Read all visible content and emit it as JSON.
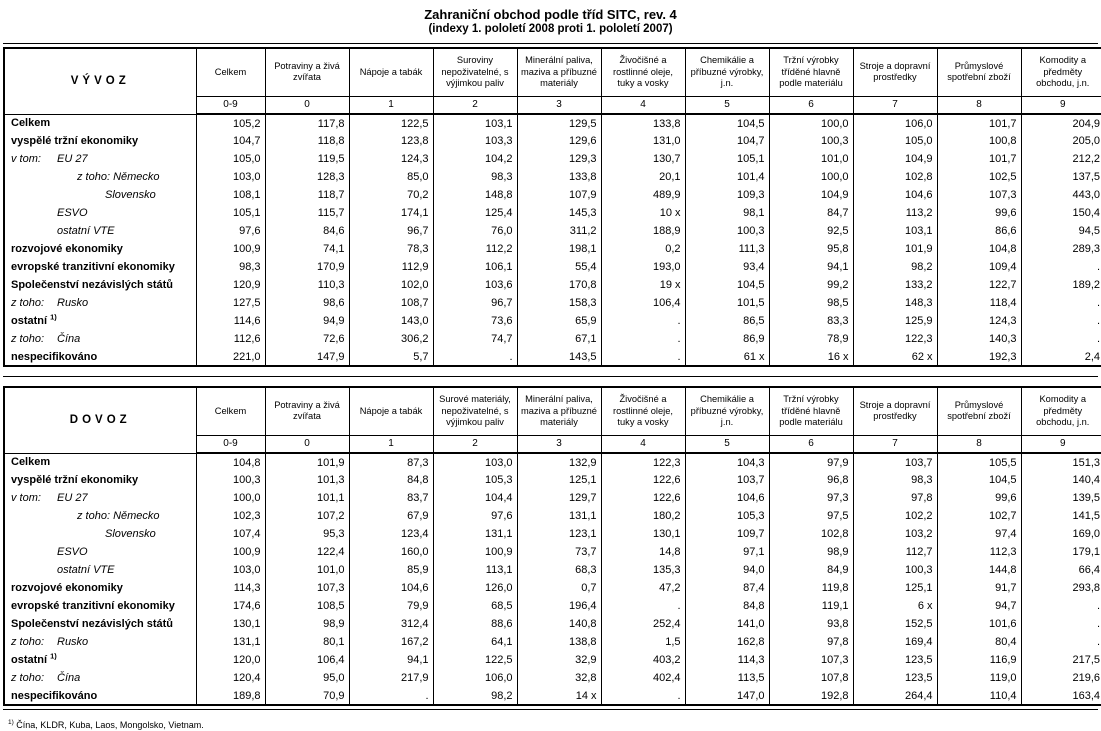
{
  "page": {
    "title": "Zahraniční obchod podle tříd SITC, rev. 4",
    "subtitle": "(indexy 1. pololetí 2008 proti 1. pololetí 2007)"
  },
  "footnote": {
    "marker": "1)",
    "text": "Čína, KLDR, Kuba, Laos, Mongolsko, Vietnam."
  },
  "tables": [
    {
      "name": "VÝVOZ",
      "columns": [
        {
          "code": "0-9",
          "title": "Celkem"
        },
        {
          "code": "0",
          "title": "Potraviny a živá zvířata"
        },
        {
          "code": "1",
          "title": "Nápoje a tabák"
        },
        {
          "code": "2",
          "title": "Suroviny nepoživatelné, s výjimkou paliv"
        },
        {
          "code": "3",
          "title": "Minerální paliva, maziva a příbuzné materiály"
        },
        {
          "code": "4",
          "title": "Živočišné a rostlinné oleje, tuky a vosky"
        },
        {
          "code": "5",
          "title": "Chemikálie a příbuzné výrobky, j.n."
        },
        {
          "code": "6",
          "title": "Tržní výrobky tříděné hlavně podle materiálu"
        },
        {
          "code": "7",
          "title": "Stroje a dopravní prostředky"
        },
        {
          "code": "8",
          "title": "Průmyslové spotřební zboží"
        },
        {
          "code": "9",
          "title": "Komodity a předměty obchodu, j.n."
        }
      ],
      "rows": [
        {
          "pre": "",
          "label": "Celkem",
          "indent": 0,
          "b": true,
          "i": false,
          "sup": "",
          "values": [
            "105,2",
            "117,8",
            "122,5",
            "103,1",
            "129,5",
            "133,8",
            "104,5",
            "100,0",
            "106,0",
            "101,7",
            "204,9"
          ]
        },
        {
          "pre": "",
          "label": "vyspělé tržní ekonomiky",
          "indent": 0,
          "b": true,
          "i": false,
          "sup": "",
          "values": [
            "104,7",
            "118,8",
            "123,8",
            "103,3",
            "129,6",
            "131,0",
            "104,7",
            "100,3",
            "105,0",
            "100,8",
            "205,0"
          ]
        },
        {
          "pre": "v tom:",
          "label": "EU 27",
          "indent": 46,
          "b": false,
          "i": true,
          "sup": "",
          "values": [
            "105,0",
            "119,5",
            "124,3",
            "104,2",
            "129,3",
            "130,7",
            "105,1",
            "101,0",
            "104,9",
            "101,7",
            "212,2"
          ]
        },
        {
          "pre": "",
          "label": "z toho: Německo",
          "indent": 66,
          "b": false,
          "i": true,
          "sup": "",
          "values": [
            "103,0",
            "128,3",
            "85,0",
            "98,3",
            "133,8",
            "20,1",
            "101,4",
            "100,0",
            "102,8",
            "102,5",
            "137,5"
          ]
        },
        {
          "pre": "",
          "label": "Slovensko",
          "indent": 94,
          "b": false,
          "i": true,
          "sup": "",
          "values": [
            "108,1",
            "118,7",
            "70,2",
            "148,8",
            "107,9",
            "489,9",
            "109,3",
            "104,9",
            "104,6",
            "107,3",
            "443,0"
          ]
        },
        {
          "pre": "",
          "label": "ESVO",
          "indent": 46,
          "b": false,
          "i": true,
          "sup": "",
          "values": [
            "105,1",
            "115,7",
            "174,1",
            "125,4",
            "145,3",
            "10 x",
            "98,1",
            "84,7",
            "113,2",
            "99,6",
            "150,4"
          ]
        },
        {
          "pre": "",
          "label": "ostatní VTE",
          "indent": 46,
          "b": false,
          "i": true,
          "sup": "",
          "values": [
            "97,6",
            "84,6",
            "96,7",
            "76,0",
            "311,2",
            "188,9",
            "100,3",
            "92,5",
            "103,1",
            "86,6",
            "94,5"
          ]
        },
        {
          "pre": "",
          "label": "rozvojové ekonomiky",
          "indent": 0,
          "b": true,
          "i": false,
          "sup": "",
          "values": [
            "100,9",
            "74,1",
            "78,3",
            "112,2",
            "198,1",
            "0,2",
            "111,3",
            "95,8",
            "101,9",
            "104,8",
            "289,3"
          ]
        },
        {
          "pre": "",
          "label": "evropské tranzitivní ekonomiky",
          "indent": 0,
          "b": true,
          "i": false,
          "sup": "",
          "values": [
            "98,3",
            "170,9",
            "112,9",
            "106,1",
            "55,4",
            "193,0",
            "93,4",
            "94,1",
            "98,2",
            "109,4",
            "."
          ]
        },
        {
          "pre": "",
          "label": "Společenství nezávislých států",
          "indent": 0,
          "b": true,
          "i": false,
          "sup": "",
          "values": [
            "120,9",
            "110,3",
            "102,0",
            "103,6",
            "170,8",
            "19 x",
            "104,5",
            "99,2",
            "133,2",
            "122,7",
            "189,2"
          ]
        },
        {
          "pre": "z toho:",
          "label": "Rusko",
          "indent": 46,
          "b": false,
          "i": true,
          "sup": "",
          "values": [
            "127,5",
            "98,6",
            "108,7",
            "96,7",
            "158,3",
            "106,4",
            "101,5",
            "98,5",
            "148,3",
            "118,4",
            "."
          ]
        },
        {
          "pre": "",
          "label": "ostatní ",
          "indent": 0,
          "b": true,
          "i": false,
          "sup": "1)",
          "values": [
            "114,6",
            "94,9",
            "143,0",
            "73,6",
            "65,9",
            ".",
            "86,5",
            "83,3",
            "125,9",
            "124,3",
            "."
          ]
        },
        {
          "pre": "z toho:",
          "label": "Čína",
          "indent": 46,
          "b": false,
          "i": true,
          "sup": "",
          "values": [
            "112,6",
            "72,6",
            "306,2",
            "74,7",
            "67,1",
            ".",
            "86,9",
            "78,9",
            "122,3",
            "140,3",
            "."
          ]
        },
        {
          "pre": "",
          "label": "nespecifikováno",
          "indent": 0,
          "b": true,
          "i": false,
          "sup": "",
          "values": [
            "221,0",
            "147,9",
            "5,7",
            ".",
            "143,5",
            ".",
            "61 x",
            "16 x",
            "62 x",
            "192,3",
            "2,4"
          ]
        }
      ]
    },
    {
      "name": "DOVOZ",
      "columns": [
        {
          "code": "0-9",
          "title": "Celkem"
        },
        {
          "code": "0",
          "title": "Potraviny a živá zvířata"
        },
        {
          "code": "1",
          "title": "Nápoje a tabák"
        },
        {
          "code": "2",
          "title": "Surové materiály, nepoživatelné, s výjimkou paliv"
        },
        {
          "code": "3",
          "title": "Minerální paliva, maziva a příbuzné materiály"
        },
        {
          "code": "4",
          "title": "Živočišné a rostlinné oleje, tuky a vosky"
        },
        {
          "code": "5",
          "title": "Chemikálie a příbuzné výrobky, j.n."
        },
        {
          "code": "6",
          "title": "Tržní výrobky tříděné hlavně podle materiálu"
        },
        {
          "code": "7",
          "title": "Stroje a dopravní prostředky"
        },
        {
          "code": "8",
          "title": "Průmyslové spotřební zboží"
        },
        {
          "code": "9",
          "title": "Komodity a předměty obchodu, j.n."
        }
      ],
      "rows": [
        {
          "pre": "",
          "label": "Celkem",
          "indent": 0,
          "b": true,
          "i": false,
          "sup": "",
          "values": [
            "104,8",
            "101,9",
            "87,3",
            "103,0",
            "132,9",
            "122,3",
            "104,3",
            "97,9",
            "103,7",
            "105,5",
            "151,3"
          ]
        },
        {
          "pre": "",
          "label": "vyspělé tržní ekonomiky",
          "indent": 0,
          "b": true,
          "i": false,
          "sup": "",
          "values": [
            "100,3",
            "101,3",
            "84,8",
            "105,3",
            "125,1",
            "122,6",
            "103,7",
            "96,8",
            "98,3",
            "104,5",
            "140,4"
          ]
        },
        {
          "pre": "v tom:",
          "label": "EU 27",
          "indent": 46,
          "b": false,
          "i": true,
          "sup": "",
          "values": [
            "100,0",
            "101,1",
            "83,7",
            "104,4",
            "129,7",
            "122,6",
            "104,6",
            "97,3",
            "97,8",
            "99,6",
            "139,5"
          ]
        },
        {
          "pre": "",
          "label": "z toho: Německo",
          "indent": 66,
          "b": false,
          "i": true,
          "sup": "",
          "values": [
            "102,3",
            "107,2",
            "67,9",
            "97,6",
            "131,1",
            "180,2",
            "105,3",
            "97,5",
            "102,2",
            "102,7",
            "141,5"
          ]
        },
        {
          "pre": "",
          "label": "Slovensko",
          "indent": 94,
          "b": false,
          "i": true,
          "sup": "",
          "values": [
            "107,4",
            "95,3",
            "123,4",
            "131,1",
            "123,1",
            "130,1",
            "109,7",
            "102,8",
            "103,2",
            "97,4",
            "169,0"
          ]
        },
        {
          "pre": "",
          "label": "ESVO",
          "indent": 46,
          "b": false,
          "i": true,
          "sup": "",
          "values": [
            "100,9",
            "122,4",
            "160,0",
            "100,9",
            "73,7",
            "14,8",
            "97,1",
            "98,9",
            "112,7",
            "112,3",
            "179,1"
          ]
        },
        {
          "pre": "",
          "label": "ostatní VTE",
          "indent": 46,
          "b": false,
          "i": true,
          "sup": "",
          "values": [
            "103,0",
            "101,0",
            "85,9",
            "113,1",
            "68,3",
            "135,3",
            "94,0",
            "84,9",
            "100,3",
            "144,8",
            "66,4"
          ]
        },
        {
          "pre": "",
          "label": "rozvojové ekonomiky",
          "indent": 0,
          "b": true,
          "i": false,
          "sup": "",
          "values": [
            "114,3",
            "107,3",
            "104,6",
            "126,0",
            "0,7",
            "47,2",
            "87,4",
            "119,8",
            "125,1",
            "91,7",
            "293,8"
          ]
        },
        {
          "pre": "",
          "label": "evropské tranzitivní ekonomiky",
          "indent": 0,
          "b": true,
          "i": false,
          "sup": "",
          "values": [
            "174,6",
            "108,5",
            "79,9",
            "68,5",
            "196,4",
            ".",
            "84,8",
            "119,1",
            "6 x",
            "94,7",
            "."
          ]
        },
        {
          "pre": "",
          "label": "Společenství nezávislých států",
          "indent": 0,
          "b": true,
          "i": false,
          "sup": "",
          "values": [
            "130,1",
            "98,9",
            "312,4",
            "88,6",
            "140,8",
            "252,4",
            "141,0",
            "93,8",
            "152,5",
            "101,6",
            "."
          ]
        },
        {
          "pre": "z toho:",
          "label": "Rusko",
          "indent": 46,
          "b": false,
          "i": true,
          "sup": "",
          "values": [
            "131,1",
            "80,1",
            "167,2",
            "64,1",
            "138,8",
            "1,5",
            "162,8",
            "97,8",
            "169,4",
            "80,4",
            "."
          ]
        },
        {
          "pre": "",
          "label": "ostatní ",
          "indent": 0,
          "b": true,
          "i": false,
          "sup": "1)",
          "values": [
            "120,0",
            "106,4",
            "94,1",
            "122,5",
            "32,9",
            "403,2",
            "114,3",
            "107,3",
            "123,5",
            "116,9",
            "217,5"
          ]
        },
        {
          "pre": "z toho:",
          "label": "Čína",
          "indent": 46,
          "b": false,
          "i": true,
          "sup": "",
          "values": [
            "120,4",
            "95,0",
            "217,9",
            "106,0",
            "32,8",
            "402,4",
            "113,5",
            "107,8",
            "123,5",
            "119,0",
            "219,6"
          ]
        },
        {
          "pre": "",
          "label": "nespecifikováno",
          "indent": 0,
          "b": true,
          "i": false,
          "sup": "",
          "values": [
            "189,8",
            "70,9",
            ".",
            "98,2",
            "14 x",
            ".",
            "147,0",
            "192,8",
            "264,4",
            "110,4",
            "163,4"
          ]
        }
      ]
    }
  ]
}
